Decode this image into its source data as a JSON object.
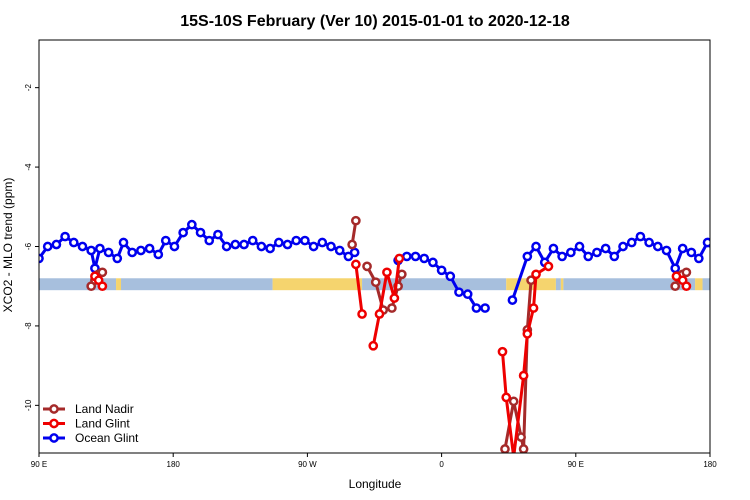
{
  "chart_data": {
    "type": "line",
    "title": "15S-10S February (Ver 10)   2015-01-01 to 2020-12-18",
    "xlabel": "Longitude",
    "ylabel": "XCO2 - MLO trend (ppm)",
    "xlim": [
      -90,
      180
    ],
    "ylim": [
      -11.2,
      -0.8
    ],
    "x_ticks": [
      -90,
      -36,
      18,
      72,
      126,
      180
    ],
    "x_tick_labels": [
      "90 E",
      "180",
      "90 W",
      "0",
      "90 E",
      "180"
    ],
    "y_ticks": [
      -10,
      -8,
      -6,
      -4,
      -2
    ],
    "y_tick_labels": [
      "-10",
      "-8",
      "-6",
      "-4",
      "-2"
    ],
    "grid": false,
    "legend_position": "bottom-left",
    "band": {
      "y_min": -7.1,
      "y_max": -6.8,
      "segments": [
        {
          "color": "#a7bfdd",
          "x_range": [
            -90,
            -59
          ]
        },
        {
          "color": "#f5d46e",
          "x_range": [
            -59,
            -57
          ]
        },
        {
          "color": "#a7bfdd",
          "x_range": [
            -57,
            4
          ]
        },
        {
          "color": "#f5d46e",
          "x_range": [
            4,
            40
          ]
        },
        {
          "color": "#a7bfdd",
          "x_range": [
            40,
            98
          ]
        },
        {
          "color": "#f5d46e",
          "x_range": [
            98,
            118
          ]
        },
        {
          "color": "#a7bfdd",
          "x_range": [
            118,
            120
          ]
        },
        {
          "color": "#f5d46e",
          "x_range": [
            120,
            121
          ]
        },
        {
          "color": "#a7bfdd",
          "x_range": [
            121,
            174
          ]
        },
        {
          "color": "#f5d46e",
          "x_range": [
            174,
            177
          ]
        },
        {
          "color": "#a7bfdd",
          "x_range": [
            177,
            180
          ]
        }
      ]
    },
    "series": [
      {
        "name": "Ocean Glint",
        "color": "#0000ee",
        "points": [
          [
            -90,
            -6.3
          ],
          [
            -86.5,
            -6.0
          ],
          [
            -83,
            -5.95
          ],
          [
            -79.5,
            -5.75
          ],
          [
            -76,
            -5.9
          ],
          [
            -72.5,
            -6.0
          ],
          [
            -69,
            -6.1
          ],
          [
            -67.5,
            -6.55
          ],
          [
            -65.5,
            -6.05
          ],
          [
            -62,
            -6.15
          ],
          [
            -58.5,
            -6.3
          ],
          [
            -56,
            -5.9
          ],
          [
            -52.5,
            -6.15
          ],
          [
            -49,
            -6.1
          ],
          [
            -45.5,
            -6.05
          ],
          [
            -42,
            -6.2
          ],
          [
            -39,
            -5.85
          ],
          [
            -35.5,
            -6.0
          ],
          [
            -32,
            -5.65
          ],
          [
            -28.5,
            -5.45
          ],
          [
            -25,
            -5.65
          ],
          [
            -21.5,
            -5.85
          ],
          [
            -18,
            -5.7
          ],
          [
            -14.5,
            -6.0
          ],
          [
            -11,
            -5.95
          ],
          [
            -7.5,
            -5.95
          ],
          [
            -4,
            -5.85
          ],
          [
            -0.5,
            -6.0
          ],
          [
            3,
            -6.05
          ],
          [
            6.5,
            -5.9
          ],
          [
            10,
            -5.95
          ],
          [
            13.5,
            -5.85
          ],
          [
            17,
            -5.85
          ],
          [
            20.5,
            -6.0
          ],
          [
            24,
            -5.9
          ],
          [
            27.5,
            -6.0
          ],
          [
            31,
            -6.1
          ],
          [
            34.5,
            -6.25
          ],
          [
            37,
            -6.15
          ],
          [
            54.5,
            -6.35
          ],
          [
            58,
            -6.25
          ],
          [
            61.5,
            -6.25
          ],
          [
            65,
            -6.3
          ],
          [
            68.5,
            -6.4
          ],
          [
            72,
            -6.6
          ],
          [
            75.5,
            -6.75
          ],
          [
            79,
            -7.15
          ],
          [
            82.5,
            -7.2
          ],
          [
            86,
            -7.55
          ],
          [
            89.5,
            -7.55
          ],
          [
            100.5,
            -7.35
          ],
          [
            106.5,
            -6.25
          ],
          [
            110,
            -6.0
          ],
          [
            113.5,
            -6.4
          ],
          [
            117,
            -6.05
          ],
          [
            120.5,
            -6.25
          ],
          [
            124,
            -6.15
          ],
          [
            127.5,
            -6.0
          ],
          [
            131,
            -6.25
          ],
          [
            134.5,
            -6.15
          ],
          [
            138,
            -6.05
          ],
          [
            141.5,
            -6.25
          ],
          [
            145,
            -6.0
          ],
          [
            148.5,
            -5.9
          ],
          [
            152,
            -5.75
          ],
          [
            155.5,
            -5.9
          ],
          [
            159,
            -6.0
          ],
          [
            162.5,
            -6.1
          ],
          [
            166,
            -6.55
          ],
          [
            169,
            -6.05
          ],
          [
            172.5,
            -6.15
          ],
          [
            175.5,
            -6.3
          ],
          [
            179,
            -5.9
          ],
          [
            182.5,
            -6.2
          ],
          [
            186,
            -6.1
          ],
          [
            189.5,
            -6.0
          ],
          [
            193,
            -6.2
          ],
          [
            196.5,
            -5.85
          ],
          [
            200,
            -5.95
          ]
        ]
      },
      {
        "name": "Land Nadir",
        "color": "#a52a2a",
        "points": [
          [
            -69,
            -7.0
          ],
          [
            -67.5,
            -6.85
          ],
          [
            -66,
            -6.7
          ],
          [
            -64.5,
            -6.65
          ],
          [
            36,
            -5.95
          ],
          [
            37.5,
            -5.35
          ],
          [
            42,
            -6.5
          ],
          [
            45.5,
            -6.9
          ],
          [
            48.5,
            -7.6
          ],
          [
            52,
            -7.55
          ],
          [
            54.5,
            -7.0
          ],
          [
            56,
            -6.7
          ],
          [
            97.5,
            -11.1
          ],
          [
            101,
            -9.9
          ],
          [
            104,
            -10.8
          ],
          [
            105,
            -11.1
          ],
          [
            106.5,
            -8.1
          ],
          [
            108,
            -6.85
          ],
          [
            166,
            -7.0
          ],
          [
            167.5,
            -6.75
          ],
          [
            169,
            -6.7
          ],
          [
            170.5,
            -6.65
          ]
        ]
      },
      {
        "name": "Land Glint",
        "color": "#ee0000",
        "points": [
          [
            -67.5,
            -6.75
          ],
          [
            -66,
            -6.85
          ],
          [
            -64.5,
            -7.0
          ],
          [
            37.5,
            -6.45
          ],
          [
            40,
            -7.7
          ],
          [
            44.5,
            -8.5
          ],
          [
            47,
            -7.7
          ],
          [
            50,
            -6.65
          ],
          [
            53,
            -7.3
          ],
          [
            55,
            -6.3
          ],
          [
            96.5,
            -8.65
          ],
          [
            98,
            -9.8
          ],
          [
            101,
            -11.3
          ],
          [
            105,
            -9.25
          ],
          [
            106.5,
            -8.2
          ],
          [
            109,
            -7.55
          ],
          [
            110,
            -6.7
          ],
          [
            115,
            -6.5
          ],
          [
            166.5,
            -6.75
          ],
          [
            169,
            -6.85
          ],
          [
            170.5,
            -7.0
          ]
        ]
      }
    ],
    "segment_breaks": {
      "Ocean Glint": [
        37,
        89.5
      ],
      "Land Nadir": [
        -64.5,
        37.5,
        56,
        108
      ],
      "Land Glint": [
        -64.5,
        40,
        55,
        115
      ]
    },
    "legend": [
      "Land Nadir",
      "Land Glint",
      "Ocean Glint"
    ]
  }
}
